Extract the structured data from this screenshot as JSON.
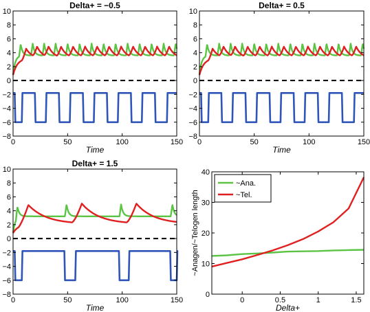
{
  "colors": {
    "anagen": "#5cc445",
    "telogen": "#e02020",
    "activator": "#2f55b8",
    "zero_line": "#000000"
  },
  "chart_data": [
    {
      "type": "line",
      "title": "Delta+ = −0.5",
      "xlabel": "Time",
      "xlim": [
        0,
        150
      ],
      "ylim": [
        -8,
        10
      ],
      "x_ticks": [
        "0",
        "50",
        "100",
        "150"
      ],
      "y_ticks": [
        "−8",
        "−6",
        "−4",
        "−2",
        "0",
        "2",
        "4",
        "6",
        "8",
        "10"
      ],
      "green_peaks": [
        7,
        18,
        28.5,
        39,
        50,
        61,
        72,
        83,
        94,
        105,
        116,
        127,
        138,
        149
      ],
      "red_peaks": [
        12,
        22,
        32.5,
        44,
        55,
        66,
        77,
        88,
        99,
        110,
        121,
        132,
        143
      ],
      "square_wave": {
        "high": -1.8,
        "low": -6,
        "segments": [
          [
            1.5,
            8
          ],
          [
            20,
            30
          ],
          [
            42,
            52
          ],
          [
            64,
            74
          ],
          [
            86,
            96
          ],
          [
            108,
            118
          ],
          [
            130,
            141
          ]
        ]
      }
    },
    {
      "type": "line",
      "title": "Delta+ = 0.5",
      "xlabel": "Time",
      "xlim": [
        0,
        150
      ],
      "ylim": [
        -8,
        10
      ],
      "x_ticks": [
        "0",
        "50",
        "100",
        "150"
      ],
      "y_ticks": [
        "−8",
        "−6",
        "−4",
        "−2",
        "0",
        "2",
        "4",
        "6",
        "8",
        "10"
      ],
      "green_peaks": [
        7,
        18,
        28.5,
        39,
        50,
        61,
        72,
        83,
        94,
        105,
        116,
        127,
        138,
        149
      ],
      "red_peaks": [
        12,
        22,
        32.5,
        44,
        55,
        66,
        77,
        88,
        99,
        110,
        121,
        132,
        143
      ],
      "square_wave": {
        "high": -1.8,
        "low": -6,
        "segments": [
          [
            1.5,
            8
          ],
          [
            20,
            30
          ],
          [
            42,
            52
          ],
          [
            64,
            74
          ],
          [
            86,
            96
          ],
          [
            108,
            118
          ],
          [
            130,
            141
          ]
        ]
      }
    },
    {
      "type": "line",
      "title": "Delta+ = 1.5",
      "xlabel": "Time",
      "xlim": [
        0,
        150
      ],
      "ylim": [
        -8,
        10
      ],
      "x_ticks": [
        "0",
        "50",
        "100",
        "150"
      ],
      "y_ticks": [
        "−8",
        "−6",
        "−4",
        "−2",
        "0",
        "2",
        "4",
        "6",
        "8",
        "10"
      ],
      "green_peaks": [
        4,
        49,
        99,
        146
      ],
      "red_peaks": [
        14,
        63,
        113
      ],
      "square_wave": {
        "high": -1.8,
        "low": -6,
        "segments": [
          [
            1.5,
            8
          ],
          [
            47,
            57
          ],
          [
            97,
            106
          ],
          [
            144,
            150
          ]
        ]
      }
    },
    {
      "type": "line",
      "xlabel": "Delta+",
      "ylabel": "~Anagen/~Telogen length",
      "xlim": [
        -0.4,
        1.6
      ],
      "ylim": [
        0,
        40
      ],
      "x_ticks": [
        "0",
        "0.5",
        "1",
        "1.5"
      ],
      "y_ticks": [
        "0",
        "10",
        "20",
        "30",
        "40"
      ],
      "legend_position": "upper-left",
      "series": [
        {
          "name": "~Ana.",
          "x": [
            -0.4,
            -0.2,
            0,
            0.2,
            0.4,
            0.6,
            0.8,
            1,
            1.2,
            1.4,
            1.6
          ],
          "y": [
            12.5,
            12.7,
            13.1,
            13.3,
            13.6,
            13.9,
            14,
            14.1,
            14.3,
            14.4,
            14.5
          ]
        },
        {
          "name": "~Tel.",
          "x": [
            -0.4,
            -0.2,
            0,
            0.2,
            0.4,
            0.6,
            0.8,
            1,
            1.2,
            1.4,
            1.6
          ],
          "y": [
            9,
            10.2,
            11.4,
            12.8,
            14.3,
            16,
            18,
            20.5,
            23.5,
            28,
            38.2
          ]
        }
      ]
    }
  ]
}
